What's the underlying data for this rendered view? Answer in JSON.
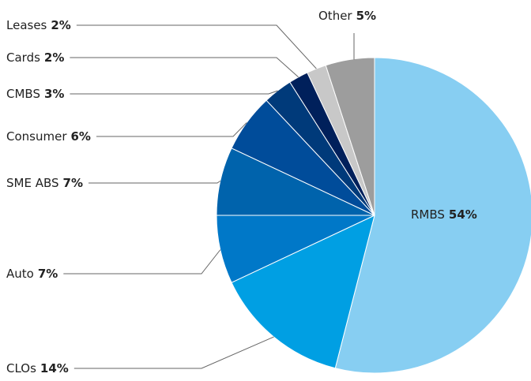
{
  "chart_data": {
    "type": "pie",
    "categories": [
      "RMBS",
      "CLOs",
      "Auto",
      "SME ABS",
      "Consumer",
      "CMBS",
      "Cards",
      "Leases",
      "Other"
    ],
    "values": [
      54,
      14,
      7,
      7,
      6,
      3,
      2,
      2,
      5
    ],
    "value_labels": [
      "54%",
      "14%",
      "7%",
      "7%",
      "6%",
      "3%",
      "2%",
      "2%",
      "5%"
    ],
    "colors": [
      "#87cef2",
      "#009fe3",
      "#0078c8",
      "#0063ac",
      "#004c9a",
      "#003a7a",
      "#00205b",
      "#c8c8c8",
      "#9d9d9d"
    ]
  }
}
